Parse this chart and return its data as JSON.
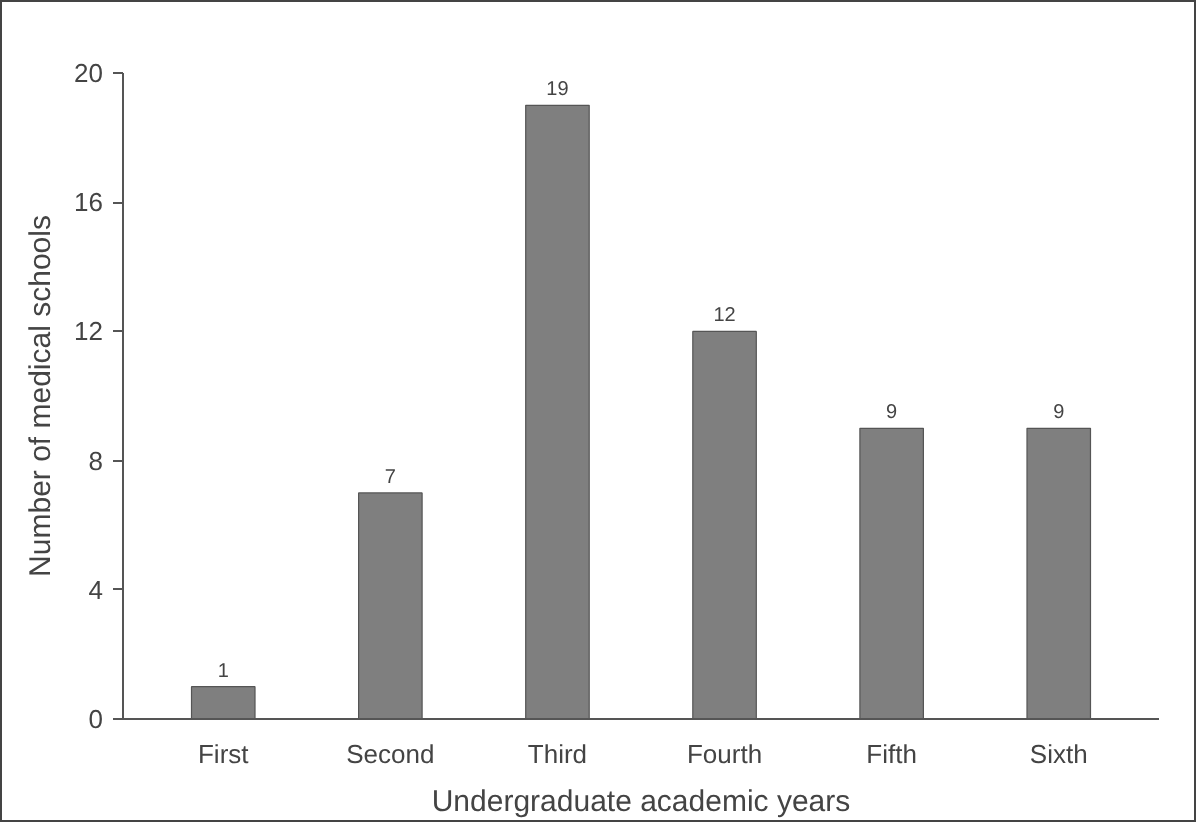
{
  "chart_data": {
    "type": "bar",
    "xlabel": "Undergraduate academic years",
    "ylabel": "Number of medical schools",
    "categories": [
      "First",
      "Second",
      "Third",
      "Fourth",
      "Fifth",
      "Sixth"
    ],
    "values": [
      1,
      7,
      19,
      12,
      9,
      9
    ],
    "color": "#7f7f7f",
    "ylim": [
      0,
      20
    ],
    "yticks": [
      0,
      4,
      8,
      12,
      16,
      20
    ],
    "grid": false,
    "data_labels": true
  }
}
